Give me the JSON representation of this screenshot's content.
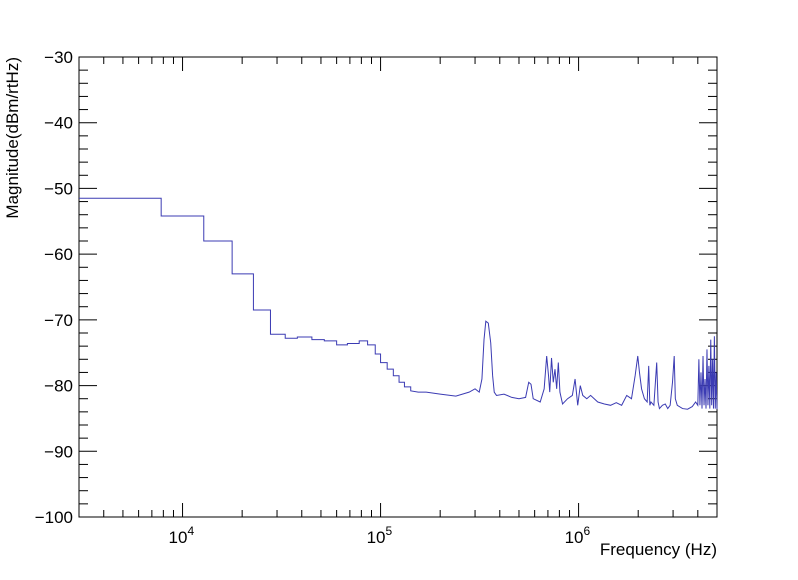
{
  "chart_data": {
    "type": "line",
    "title": "",
    "xlabel": "Frequency (Hz)",
    "ylabel": "Magnitude(dBm/rtHz)",
    "xscale": "log",
    "xlim": [
      3000,
      5000000
    ],
    "ylim": [
      -100,
      -30
    ],
    "grid": false,
    "legend": "none",
    "line_color": "#3b3bb3",
    "x_tick_labels": [
      {
        "value": 10000,
        "base": "10",
        "exp": "4"
      },
      {
        "value": 100000,
        "base": "10",
        "exp": "5"
      },
      {
        "value": 1000000,
        "base": "10",
        "exp": "6"
      }
    ],
    "y_ticks": [
      -100,
      -90,
      -80,
      -70,
      -60,
      -50,
      -40,
      -30
    ],
    "y_tick_labels": [
      "−100",
      "−90",
      "−80",
      "−70",
      "−60",
      "−50",
      "−40",
      "−30"
    ],
    "series": [
      {
        "x": [
          3000,
          7800,
          7800,
          12800,
          12800,
          17800,
          17800,
          22800,
          22800,
          27800,
          27800,
          33000,
          33000,
          38000,
          38000,
          45000,
          45000,
          52000,
          52000,
          60000,
          60000,
          68000,
          68000,
          78000,
          78000,
          86000,
          86000,
          94000,
          94000,
          100000,
          100000,
          108000,
          108000,
          116000,
          116000,
          124000,
          124000,
          132000,
          132000,
          142000,
          142000,
          155000,
          170000,
          200000,
          240000,
          280000,
          300000,
          315000,
          325000,
          333000,
          340000,
          350000,
          360000,
          368000,
          375000,
          385000,
          420000,
          460000,
          500000,
          540000,
          560000,
          575000,
          590000,
          640000,
          670000,
          690000,
          705000,
          715000,
          730000,
          745000,
          760000,
          775000,
          790000,
          805000,
          830000,
          880000,
          930000,
          960000,
          990000,
          1020000,
          1050000,
          1100000,
          1150000,
          1250000,
          1350000,
          1450000,
          1550000,
          1650000,
          1750000,
          1850000,
          1930000,
          1990000,
          2030000,
          2080000,
          2150000,
          2220000,
          2260000,
          2290000,
          2320000,
          2400000,
          2480000,
          2520000,
          2560000,
          2650000,
          2740000,
          2820000,
          2900000,
          2980000,
          3040000,
          3080000,
          3150000,
          3350000,
          3550000,
          3750000,
          3900000,
          4000000,
          4050000,
          4100000,
          4150000,
          4200000,
          4250000,
          4300000,
          4350000,
          4400000,
          4450000,
          4500000,
          4550000,
          4600000,
          4650000,
          4700000,
          4750000,
          4800000,
          4850000,
          4900000,
          4950000,
          5000000
        ],
        "y": [
          -51.5,
          -51.5,
          -54.2,
          -54.2,
          -58.0,
          -58.0,
          -63.0,
          -63.0,
          -68.5,
          -68.5,
          -72.2,
          -72.2,
          -72.8,
          -72.8,
          -72.6,
          -72.6,
          -73.0,
          -73.0,
          -73.2,
          -73.2,
          -73.8,
          -73.8,
          -73.6,
          -73.6,
          -73.2,
          -73.2,
          -73.8,
          -73.8,
          -75.2,
          -75.2,
          -76.5,
          -76.5,
          -77.5,
          -77.5,
          -78.5,
          -78.5,
          -79.5,
          -79.5,
          -80.2,
          -80.2,
          -80.8,
          -81.0,
          -81.0,
          -81.3,
          -81.6,
          -81.0,
          -80.5,
          -81.0,
          -79.0,
          -73.0,
          -70.2,
          -70.5,
          -73.5,
          -78.5,
          -81.0,
          -81.5,
          -81.3,
          -81.8,
          -82.0,
          -81.8,
          -79.5,
          -79.8,
          -82.0,
          -82.5,
          -80.5,
          -75.5,
          -78.5,
          -81.0,
          -75.8,
          -79.5,
          -77.5,
          -80.5,
          -76.5,
          -81.0,
          -82.8,
          -82.0,
          -81.5,
          -79.0,
          -83.0,
          -80.0,
          -81.5,
          -82.0,
          -81.5,
          -82.5,
          -82.8,
          -83.0,
          -82.6,
          -83.0,
          -81.5,
          -82.0,
          -78.5,
          -75.5,
          -78.0,
          -80.5,
          -82.0,
          -82.5,
          -77.0,
          -83.0,
          -82.5,
          -83.0,
          -76.5,
          -82.5,
          -83.5,
          -83.0,
          -82.8,
          -83.5,
          -83.0,
          -79.5,
          -75.5,
          -82.0,
          -83.0,
          -83.5,
          -83.6,
          -83.2,
          -82.5,
          -83.0,
          -76.0,
          -83.0,
          -78.0,
          -83.5,
          -75.5,
          -83.0,
          -79.0,
          -83.5,
          -74.5,
          -83.0,
          -77.0,
          -83.5,
          -73.0,
          -83.0,
          -76.0,
          -83.5,
          -72.5,
          -83.5,
          -78.0,
          -83.6
        ]
      }
    ]
  }
}
